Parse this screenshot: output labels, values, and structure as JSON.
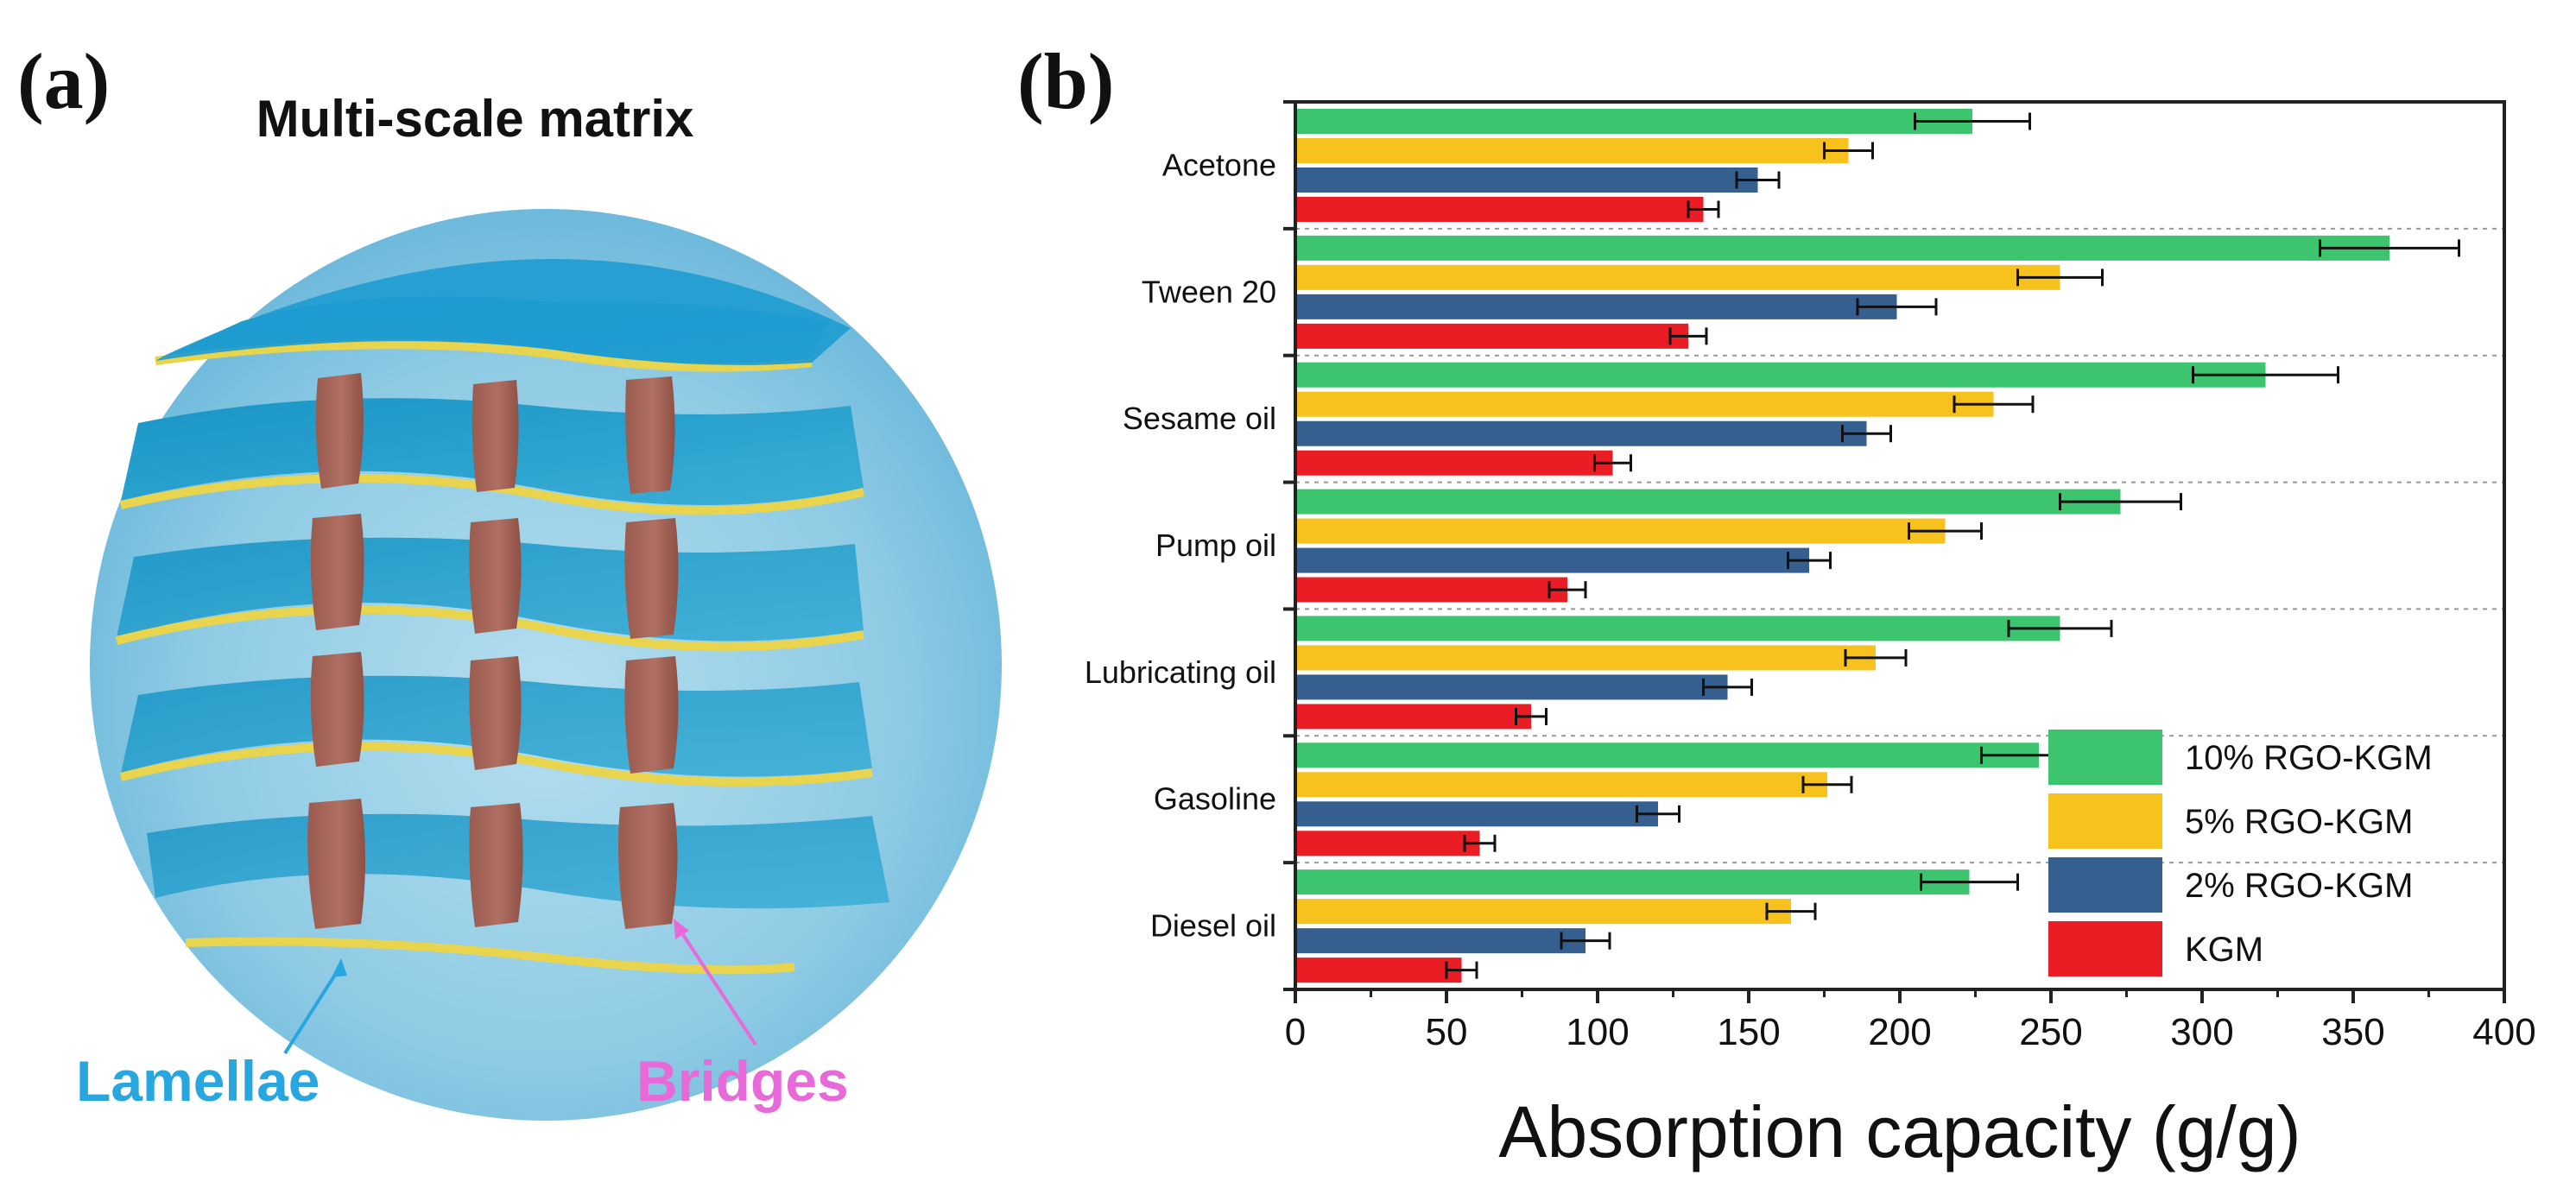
{
  "figure": {
    "panel_a": {
      "label": "(a)",
      "title": "Multi-scale matrix",
      "annotations": {
        "lamellae": "Lamellae",
        "bridges": "Bridges"
      },
      "colors": {
        "sphere": "#8fcbe4",
        "lamella": "#1f9ccb",
        "lamella_edge": "#e8d44d",
        "bridge": "#a9685c",
        "bridge_light": "#c98a7d",
        "lamellae_text": "#27a6df",
        "bridges_text": "#e86ad9"
      }
    },
    "panel_b": {
      "label": "(b)"
    }
  },
  "chart_data": {
    "type": "bar",
    "orientation": "horizontal",
    "categories": [
      "Acetone",
      "Tween 20",
      "Sesame oil",
      "Pump oil",
      "Lubricating oil",
      "Gasoline",
      "Diesel oil"
    ],
    "series": [
      {
        "name": "10% RGO-KGM",
        "color": "#3cc46e",
        "values": [
          224,
          362,
          321,
          273,
          253,
          246,
          223
        ],
        "errors": [
          19,
          23,
          24,
          20,
          17,
          19,
          16
        ]
      },
      {
        "name": "5% RGO-KGM",
        "color": "#f7c21e",
        "values": [
          183,
          253,
          231,
          215,
          192,
          176,
          164
        ],
        "errors": [
          8,
          14,
          13,
          12,
          10,
          8,
          8
        ]
      },
      {
        "name": "2% RGO-KGM",
        "color": "#345f8e",
        "values": [
          153,
          199,
          189,
          170,
          143,
          120,
          96
        ],
        "errors": [
          7,
          13,
          8,
          7,
          8,
          7,
          8
        ]
      },
      {
        "name": "KGM",
        "color": "#ea1c24",
        "values": [
          135,
          130,
          105,
          90,
          78,
          61,
          55
        ],
        "errors": [
          5,
          6,
          6,
          6,
          5,
          5,
          5
        ]
      }
    ],
    "xlabel": "Absorption capacity (g/g)",
    "ylabel": "",
    "xlim": [
      0,
      400
    ],
    "xticks": [
      0,
      50,
      100,
      150,
      200,
      250,
      300,
      350,
      400
    ],
    "legend_position": "lower-right",
    "grid": "dotted separators between categories"
  }
}
